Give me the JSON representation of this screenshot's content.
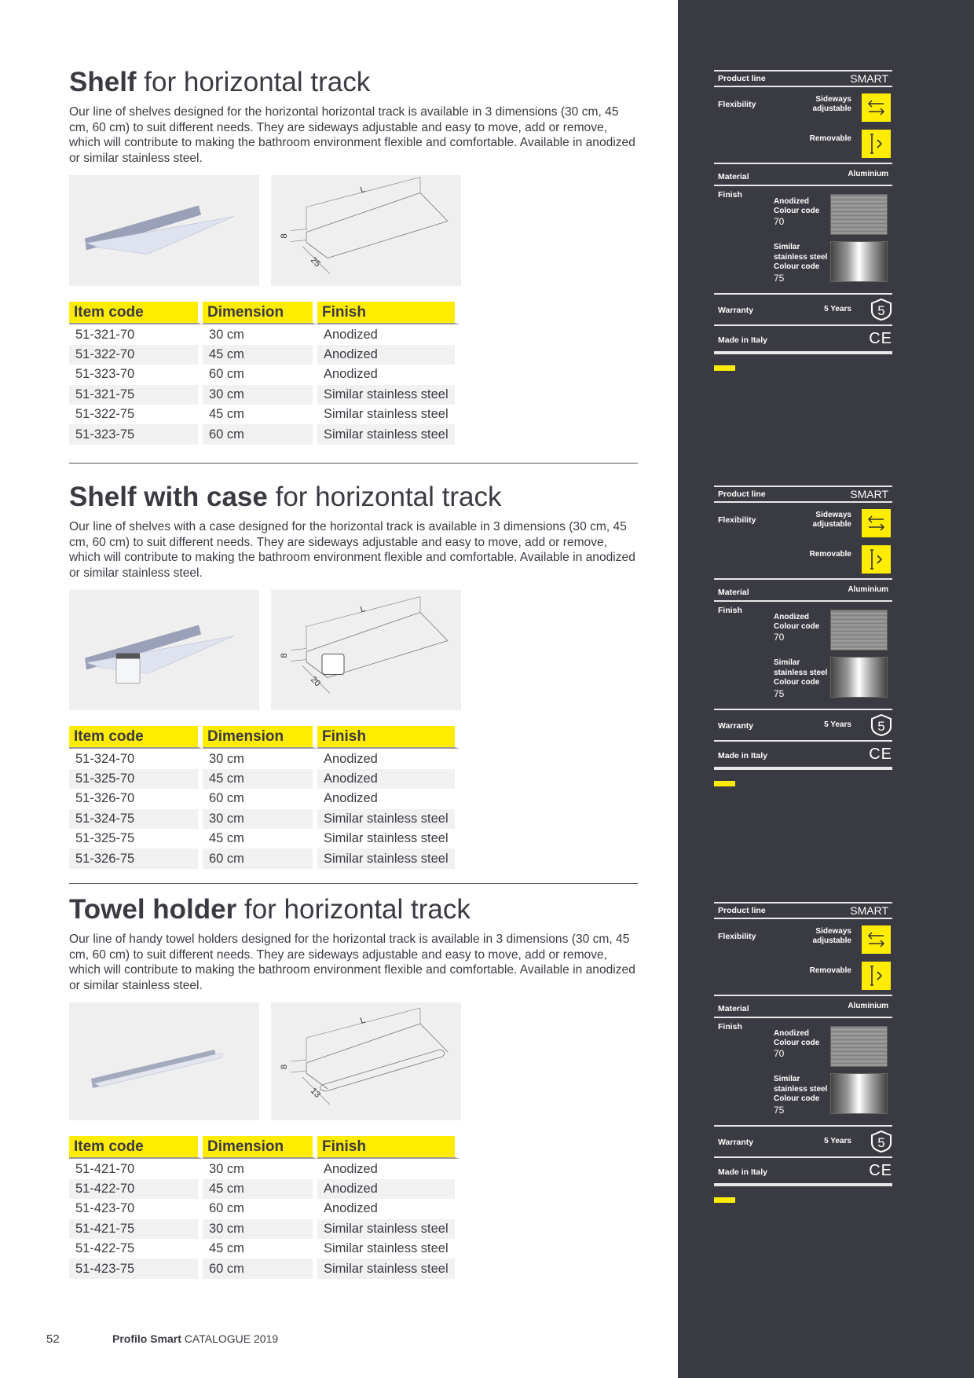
{
  "sections": [
    {
      "title_bold": "Shelf",
      "title_rest": " for horizontal track",
      "description": "Our line of shelves designed for the horizontal horizontal track is available in 3 dimensions (30 cm, 45 cm, 60 cm) to suit different needs. They are sideways adjustable and easy to move, add or remove, which will contribute to making the bathroom environment flexible and comfortable. Available in anodized or similar stainless steel.",
      "drawing_labels": {
        "length": "L",
        "height": "8",
        "depth": "25"
      },
      "table": {
        "headers": [
          "Item code",
          "Dimension",
          "Finish"
        ],
        "rows": [
          [
            "51-321-70",
            "30 cm",
            "Anodized"
          ],
          [
            "51-322-70",
            "45 cm",
            "Anodized"
          ],
          [
            "51-323-70",
            "60 cm",
            "Anodized"
          ],
          [
            "51-321-75",
            "30 cm",
            "Similar stainless steel"
          ],
          [
            "51-322-75",
            "45 cm",
            "Similar stainless steel"
          ],
          [
            "51-323-75",
            "60 cm",
            "Similar stainless steel"
          ]
        ]
      }
    },
    {
      "title_bold": "Shelf with case",
      "title_rest": " for horizontal track",
      "description": "Our line of shelves with a case designed for the horizontal track is available in 3 dimensions (30 cm, 45 cm, 60 cm) to suit different needs. They are sideways adjustable and easy to move, add or remove, which will contribute to making the bathroom environment flexible and comfortable. Available in anodized or similar stainless steel.",
      "drawing_labels": {
        "length": "L",
        "height": "8",
        "depth": "20"
      },
      "table": {
        "headers": [
          "Item code",
          "Dimension",
          "Finish"
        ],
        "rows": [
          [
            "51-324-70",
            "30 cm",
            "Anodized"
          ],
          [
            "51-325-70",
            "45 cm",
            "Anodized"
          ],
          [
            "51-326-70",
            "60 cm",
            "Anodized"
          ],
          [
            "51-324-75",
            "30 cm",
            "Similar stainless steel"
          ],
          [
            "51-325-75",
            "45 cm",
            "Similar stainless steel"
          ],
          [
            "51-326-75",
            "60 cm",
            "Similar stainless steel"
          ]
        ]
      }
    },
    {
      "title_bold": "Towel holder",
      "title_rest": " for horizontal track",
      "description": "Our line of handy towel holders designed for the horizontal track is available in 3 dimensions (30 cm, 45 cm, 60 cm) to suit different needs. They are sideways adjustable and easy to move, add or remove, which will contribute to making the bathroom environment flexible and comfortable. Available in anodized or similar stainless steel.",
      "drawing_labels": {
        "length": "L",
        "height": "8",
        "depth": "13"
      },
      "table": {
        "headers": [
          "Item code",
          "Dimension",
          "Finish"
        ],
        "rows": [
          [
            "51-421-70",
            "30 cm",
            "Anodized"
          ],
          [
            "51-422-70",
            "45 cm",
            "Anodized"
          ],
          [
            "51-423-70",
            "60 cm",
            "Anodized"
          ],
          [
            "51-421-75",
            "30 cm",
            "Similar stainless steel"
          ],
          [
            "51-422-75",
            "45 cm",
            "Similar stainless steel"
          ],
          [
            "51-423-75",
            "60 cm",
            "Similar stainless steel"
          ]
        ]
      }
    }
  ],
  "spec_panel": {
    "product_line_label": "Product line",
    "product_line_value": "SMART",
    "flexibility_label": "Flexibility",
    "sideways": "Sideways adjustable",
    "removable": "Removable",
    "material_label": "Material",
    "material_value": "Aluminium",
    "finish_label": "Finish",
    "finish_1": [
      "Anodized",
      "Colour code",
      "70"
    ],
    "finish_2": [
      "Similar",
      "stainless steel",
      "Colour code",
      "75"
    ],
    "warranty_label": "Warranty",
    "warranty_value": "5 Years",
    "warranty_badge": "5",
    "made_label": "Made in Italy",
    "ce_mark": "CE",
    "icons": [
      "sideways-arrows-icon",
      "removable-icon",
      "warranty-shield-icon",
      "ce-mark-icon"
    ],
    "accent": "#ffec00",
    "background": "#3a3a42"
  },
  "footer": {
    "page_number": "52",
    "brand": "Profilo Smart",
    "catalogue": " CATALOGUE 2019"
  }
}
